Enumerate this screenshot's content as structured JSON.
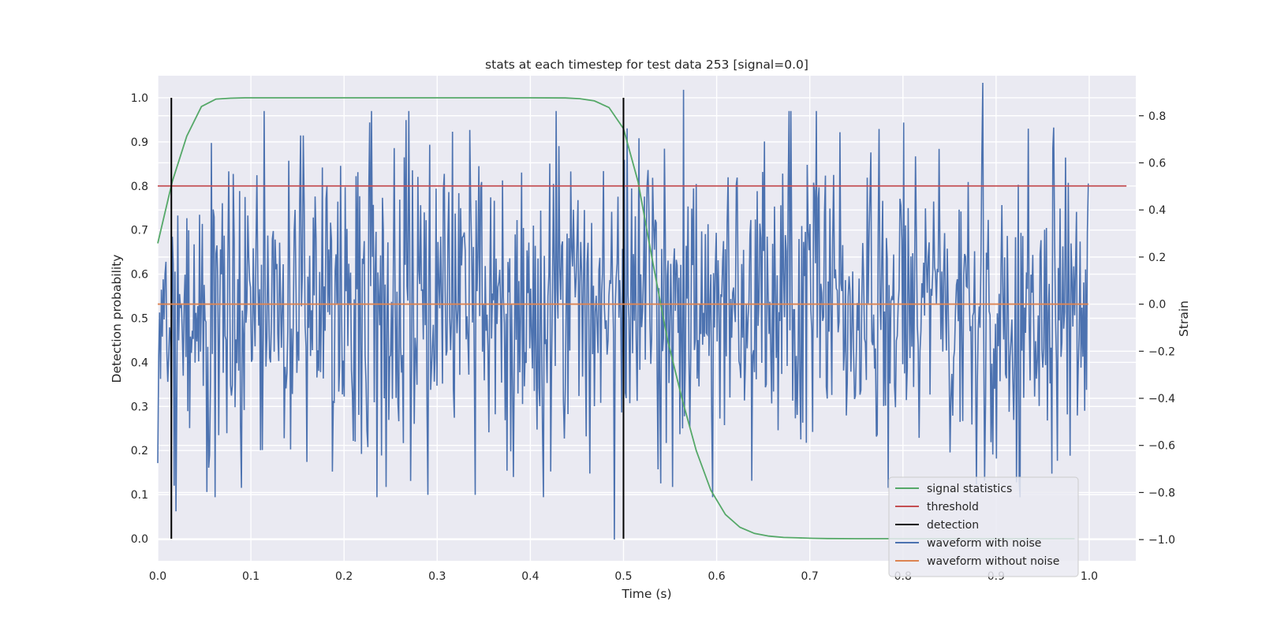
{
  "chart_data": {
    "type": "line",
    "title": "stats at each timestep for test data 253 [signal=0.0]",
    "xlabel": "Time (s)",
    "ylabel": "Detection probability",
    "y2label": "Strain",
    "xlim": [
      0.0,
      1.05
    ],
    "ylim": [
      -0.05,
      1.05
    ],
    "y2lim": [
      -1.09,
      0.97
    ],
    "xticks": [
      0.0,
      0.1,
      0.2,
      0.3,
      0.4,
      0.5,
      0.6,
      0.7,
      0.8,
      0.9,
      1.0
    ],
    "yticks": [
      0.0,
      0.1,
      0.2,
      0.3,
      0.4,
      0.5,
      0.6,
      0.7,
      0.8,
      0.9,
      1.0
    ],
    "y2ticks": [
      -1.0,
      -0.8,
      -0.6,
      -0.4,
      -0.2,
      0.0,
      0.2,
      0.4,
      0.6,
      0.8
    ],
    "grid": true,
    "legend_position": "lower right",
    "series": [
      {
        "name": "signal statistics",
        "axis": "left",
        "color": "#55a868",
        "x": [
          0.0,
          0.0156,
          0.0312,
          0.0469,
          0.0625,
          0.0781,
          0.0938,
          0.1094,
          0.125,
          0.2,
          0.3,
          0.4,
          0.4375,
          0.4531,
          0.4688,
          0.4844,
          0.5,
          0.5156,
          0.5312,
          0.5469,
          0.5625,
          0.5781,
          0.5938,
          0.6094,
          0.625,
          0.6406,
          0.6562,
          0.6719,
          0.6875,
          0.7031,
          0.7188,
          0.75,
          0.8,
          0.9,
          0.9844
        ],
        "y": [
          0.67,
          0.81,
          0.913,
          0.98,
          0.997,
          0.999,
          1.0,
          1.0,
          1.0,
          1.0,
          1.0,
          1.0,
          0.9995,
          0.998,
          0.993,
          0.978,
          0.93,
          0.81,
          0.63,
          0.455,
          0.32,
          0.2,
          0.11,
          0.055,
          0.026,
          0.012,
          0.006,
          0.003,
          0.002,
          0.001,
          0.0005,
          0.0,
          0.0,
          0.0,
          0.0
        ]
      },
      {
        "name": "threshold",
        "axis": "left",
        "color": "#c44e52",
        "x": [
          0.0,
          1.04
        ],
        "y": [
          0.8,
          0.8
        ]
      },
      {
        "name": "detection",
        "axis": "left",
        "color": "#000000",
        "segments": [
          {
            "x": 0.0146,
            "y": [
              0.0,
              1.0
            ]
          },
          {
            "x": 0.5,
            "y": [
              0.0,
              1.0
            ]
          }
        ]
      },
      {
        "name": "waveform with noise",
        "axis": "right",
        "color": "#4c72b0",
        "x_start": 0.0,
        "x_end": 0.999,
        "samples": 1024,
        "std": 0.33,
        "extremes": [
          {
            "x": 0.02,
            "y": -0.88
          },
          {
            "x": 0.09,
            "y": -0.78
          },
          {
            "x": 0.16,
            "y": -0.67
          },
          {
            "x": 0.29,
            "y": -0.81
          },
          {
            "x": 0.335,
            "y": 0.74
          },
          {
            "x": 0.49,
            "y": -1.0
          },
          {
            "x": 0.544,
            "y": 0.66
          },
          {
            "x": 0.564,
            "y": 0.91
          },
          {
            "x": 0.886,
            "y": 0.94
          },
          {
            "x": 0.888,
            "y": -0.75
          },
          {
            "x": 0.96,
            "y": -0.72
          },
          {
            "x": 0.962,
            "y": 0.75
          }
        ]
      },
      {
        "name": "waveform without noise",
        "axis": "right",
        "color": "#dd8452",
        "x": [
          0.0,
          0.999
        ],
        "y": [
          0.0,
          0.0
        ]
      }
    ]
  }
}
